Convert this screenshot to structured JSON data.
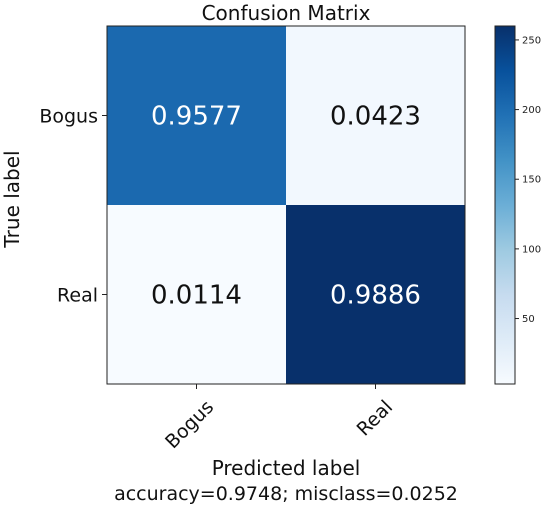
{
  "chart_data": {
    "type": "heatmap",
    "title": "Confusion Matrix",
    "xlabel": "Predicted label",
    "ylabel": "True label",
    "x_categories": [
      "Bogus",
      "Real"
    ],
    "y_categories": [
      "Bogus",
      "Real"
    ],
    "cells": [
      {
        "row": 0,
        "col": 0,
        "label": "0.9577",
        "count": 204
      },
      {
        "row": 0,
        "col": 1,
        "label": "0.0423",
        "count": 9
      },
      {
        "row": 1,
        "col": 0,
        "label": "0.0114",
        "count": 3
      },
      {
        "row": 1,
        "col": 1,
        "label": "0.9886",
        "count": 260
      }
    ],
    "colorbar": {
      "min": 3,
      "max": 260,
      "ticks": [
        50,
        100,
        150,
        200,
        250
      ],
      "tick_labels": [
        "50",
        "100",
        "150",
        "200",
        "250"
      ],
      "colormap": "Blues"
    },
    "footer": "accuracy=0.9748; misclass=0.0252"
  },
  "colors": {
    "low": "#f7fbff",
    "high": "#08306b",
    "text_dark": "#111111",
    "text_light": "#ffffff"
  }
}
